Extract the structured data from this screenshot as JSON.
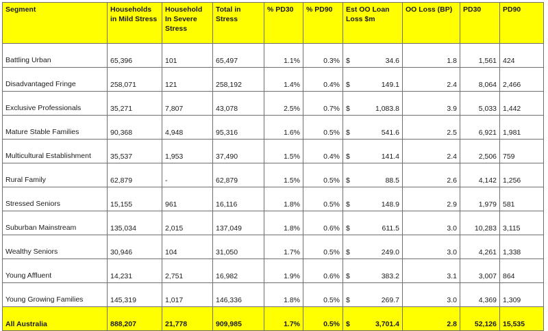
{
  "headers": [
    "Segment",
    "Households in Mild Stress",
    "Household In Severe Stress",
    "Total in Stress",
    "% PD30",
    "% PD90",
    "Est OO Loan Loss $m",
    "OO Loss (BP)",
    "PD30",
    "PD90"
  ],
  "currency_symbol": "$",
  "rows": [
    {
      "segment": "Battling Urban",
      "mild": "65,396",
      "severe": "101",
      "total": "65,497",
      "pd30_pct": "1.1%",
      "pd90_pct": "0.3%",
      "loan_loss": "34.6",
      "oo_loss_bp": "1.8",
      "pd30": "1,561",
      "pd90": "424"
    },
    {
      "segment": "Disadvantaged Fringe",
      "mild": "258,071",
      "severe": "121",
      "total": "258,192",
      "pd30_pct": "1.4%",
      "pd90_pct": "0.4%",
      "loan_loss": "149.1",
      "oo_loss_bp": "2.4",
      "pd30": "8,064",
      "pd90": "2,466"
    },
    {
      "segment": "Exclusive Professionals",
      "mild": "35,271",
      "severe": "7,807",
      "total": "43,078",
      "pd30_pct": "2.5%",
      "pd90_pct": "0.7%",
      "loan_loss": "1,083.8",
      "oo_loss_bp": "3.9",
      "pd30": "5,033",
      "pd90": "1,442"
    },
    {
      "segment": "Mature Stable Families",
      "mild": "90,368",
      "severe": "4,948",
      "total": "95,316",
      "pd30_pct": "1.6%",
      "pd90_pct": "0.5%",
      "loan_loss": "541.6",
      "oo_loss_bp": "2.5",
      "pd30": "6,921",
      "pd90": "1,981"
    },
    {
      "segment": "Multicultural Establishment",
      "mild": "35,537",
      "severe": "1,953",
      "total": "37,490",
      "pd30_pct": "1.5%",
      "pd90_pct": "0.4%",
      "loan_loss": "141.4",
      "oo_loss_bp": "2.4",
      "pd30": "2,506",
      "pd90": "759"
    },
    {
      "segment": "Rural Family",
      "mild": "62,879",
      "severe": "-",
      "total": "62,879",
      "pd30_pct": "1.5%",
      "pd90_pct": "0.5%",
      "loan_loss": "88.5",
      "oo_loss_bp": "2.6",
      "pd30": "4,142",
      "pd90": "1,256"
    },
    {
      "segment": "Stressed Seniors",
      "mild": "15,155",
      "severe": "961",
      "total": "16,116",
      "pd30_pct": "1.8%",
      "pd90_pct": "0.5%",
      "loan_loss": "148.9",
      "oo_loss_bp": "2.9",
      "pd30": "1,979",
      "pd90": "581"
    },
    {
      "segment": "Suburban Mainstream",
      "mild": "135,034",
      "severe": "2,015",
      "total": "137,049",
      "pd30_pct": "1.8%",
      "pd90_pct": "0.6%",
      "loan_loss": "611.5",
      "oo_loss_bp": "3.0",
      "pd30": "10,283",
      "pd90": "3,115"
    },
    {
      "segment": "Wealthy Seniors",
      "mild": "30,946",
      "severe": "104",
      "total": "31,050",
      "pd30_pct": "1.7%",
      "pd90_pct": "0.5%",
      "loan_loss": "249.0",
      "oo_loss_bp": "3.0",
      "pd30": "4,261",
      "pd90": "1,338"
    },
    {
      "segment": "Young Affluent",
      "mild": "14,231",
      "severe": "2,751",
      "total": "16,982",
      "pd30_pct": "1.9%",
      "pd90_pct": "0.6%",
      "loan_loss": "383.2",
      "oo_loss_bp": "3.1",
      "pd30": "3,007",
      "pd90": "864"
    },
    {
      "segment": "Young Growing Families",
      "mild": "145,319",
      "severe": "1,017",
      "total": "146,336",
      "pd30_pct": "1.8%",
      "pd90_pct": "0.5%",
      "loan_loss": "269.7",
      "oo_loss_bp": "3.0",
      "pd30": "4,369",
      "pd90": "1,309"
    }
  ],
  "total": {
    "segment": "All Australia",
    "mild": "888,207",
    "severe": "21,778",
    "total": "909,985",
    "pd30_pct": "1.7%",
    "pd90_pct": "0.5%",
    "loan_loss": "3,701.4",
    "oo_loss_bp": "2.8",
    "pd30": "52,126",
    "pd90": "15,535"
  },
  "colors": {
    "header_bg": "#ffff00",
    "total_bg": "#ffff00",
    "border": "#6e6e6e"
  }
}
